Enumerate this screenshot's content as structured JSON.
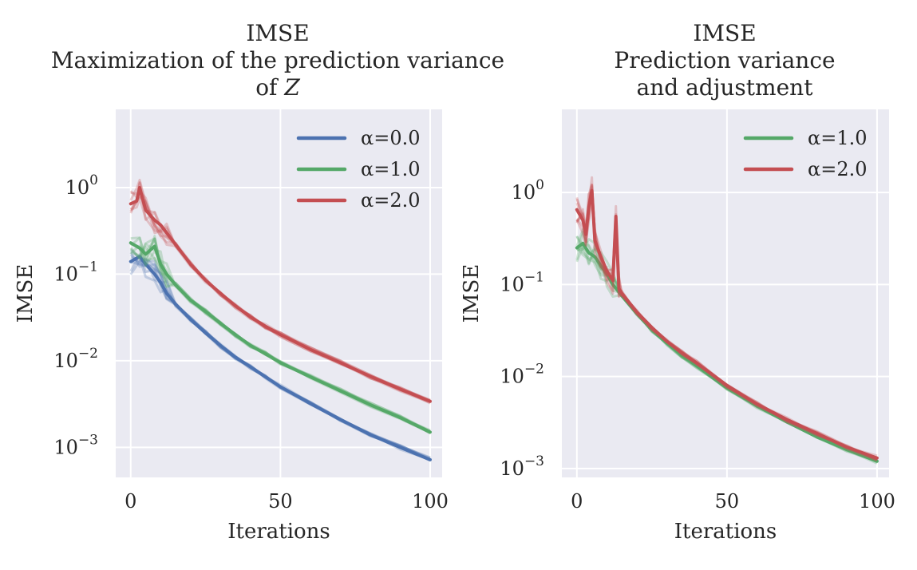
{
  "chart_data": [
    {
      "type": "line",
      "title": "IMSE\nMaximization of the prediction variance\nof Z",
      "title_lines": [
        "IMSE",
        "Maximization of the prediction variance",
        "of Z"
      ],
      "xlabel": "Iterations",
      "ylabel": "IMSE",
      "xlim": [
        -5,
        104
      ],
      "ylim": [
        0.00045,
        8
      ],
      "yscale": "log",
      "xticks": [
        0,
        50,
        100
      ],
      "xtick_labels": [
        "0",
        "50",
        "100"
      ],
      "yticks": [
        1,
        0.1,
        0.01,
        0.001
      ],
      "ytick_labels": [
        {
          "base": "10",
          "exp": "0"
        },
        {
          "base": "10",
          "exp": "−1"
        },
        {
          "base": "10",
          "exp": "−2"
        },
        {
          "base": "10",
          "exp": "−3"
        }
      ],
      "grid": true,
      "legend_position": "top-right",
      "series": [
        {
          "name": "α=0.0",
          "color": "#4c72b0",
          "x": [
            0,
            3,
            5,
            8,
            10,
            12,
            15,
            20,
            25,
            30,
            35,
            40,
            45,
            50,
            60,
            70,
            80,
            90,
            100
          ],
          "values": [
            0.14,
            0.16,
            0.13,
            0.1,
            0.08,
            0.06,
            0.045,
            0.03,
            0.021,
            0.015,
            0.011,
            0.0085,
            0.0065,
            0.005,
            0.0032,
            0.0021,
            0.0014,
            0.001,
            0.00072
          ]
        },
        {
          "name": "α=1.0",
          "color": "#55a868",
          "x": [
            0,
            3,
            5,
            8,
            10,
            12,
            15,
            20,
            25,
            30,
            35,
            40,
            45,
            50,
            60,
            70,
            80,
            90,
            100
          ],
          "values": [
            0.23,
            0.2,
            0.17,
            0.21,
            0.13,
            0.1,
            0.075,
            0.05,
            0.037,
            0.027,
            0.02,
            0.015,
            0.012,
            0.0095,
            0.0065,
            0.0045,
            0.0031,
            0.0022,
            0.0015
          ]
        },
        {
          "name": "α=2.0",
          "color": "#c44e52",
          "x": [
            0,
            2,
            3,
            5,
            8,
            10,
            12,
            15,
            20,
            25,
            30,
            35,
            40,
            45,
            50,
            60,
            70,
            80,
            90,
            100
          ],
          "values": [
            0.65,
            0.7,
            1.0,
            0.55,
            0.42,
            0.37,
            0.3,
            0.22,
            0.13,
            0.085,
            0.06,
            0.043,
            0.032,
            0.025,
            0.02,
            0.0135,
            0.0095,
            0.0066,
            0.0047,
            0.0034
          ]
        }
      ]
    },
    {
      "type": "line",
      "title": "IMSE\nPrediction variance\nand adjustment",
      "title_lines": [
        "IMSE",
        "Prediction variance",
        "and adjustment"
      ],
      "xlabel": "Iterations",
      "ylabel": "IMSE",
      "xlim": [
        -5,
        104
      ],
      "ylim": [
        0.0008,
        8
      ],
      "yscale": "log",
      "xticks": [
        0,
        50,
        100
      ],
      "xtick_labels": [
        "0",
        "50",
        "100"
      ],
      "yticks": [
        1,
        0.1,
        0.01,
        0.001
      ],
      "ytick_labels": [
        {
          "base": "10",
          "exp": "0"
        },
        {
          "base": "10",
          "exp": "−1"
        },
        {
          "base": "10",
          "exp": "−2"
        },
        {
          "base": "10",
          "exp": "−3"
        }
      ],
      "grid": true,
      "legend_position": "top-right",
      "series": [
        {
          "name": "α=1.0",
          "color": "#55a868",
          "x": [
            0,
            2,
            4,
            6,
            8,
            10,
            12,
            15,
            20,
            25,
            30,
            35,
            40,
            50,
            60,
            70,
            80,
            90,
            100
          ],
          "values": [
            0.25,
            0.28,
            0.22,
            0.2,
            0.16,
            0.13,
            0.1,
            0.075,
            0.048,
            0.032,
            0.023,
            0.017,
            0.013,
            0.0075,
            0.0048,
            0.0032,
            0.0022,
            0.0016,
            0.0012
          ]
        },
        {
          "name": "α=2.0",
          "color": "#c44e52",
          "x": [
            0,
            2,
            3,
            4,
            5,
            6,
            8,
            10,
            12,
            13,
            14,
            15,
            20,
            25,
            30,
            35,
            40,
            50,
            60,
            70,
            80,
            90,
            100
          ],
          "values": [
            0.65,
            0.5,
            0.35,
            0.7,
            1.05,
            0.3,
            0.2,
            0.14,
            0.11,
            0.55,
            0.09,
            0.08,
            0.05,
            0.034,
            0.024,
            0.018,
            0.014,
            0.008,
            0.005,
            0.0034,
            0.0024,
            0.0017,
            0.0013
          ]
        }
      ]
    }
  ]
}
